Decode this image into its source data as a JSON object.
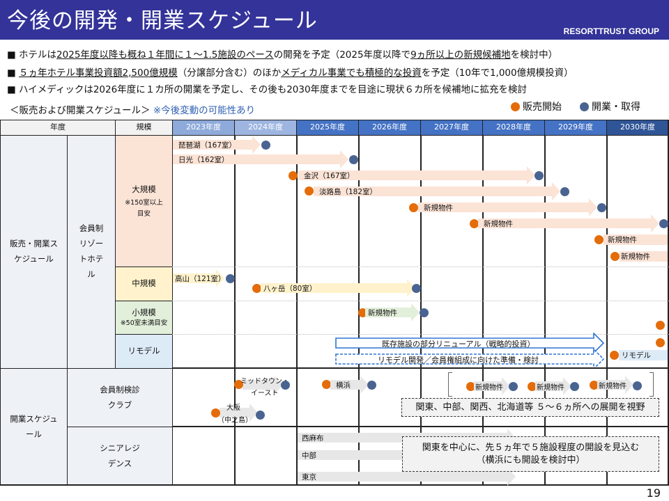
{
  "header": {
    "title": "今後の開発・開業スケジュール",
    "brand": "RESORTTRUST GROUP"
  },
  "bullets": [
    [
      "ホテルは",
      "2025年度以降も概ね１年間に１～1.5施設のペース",
      "の開発を予定（2025年度以降で",
      "9ヵ所以上の新規候補地",
      "を検討中）"
    ],
    [
      "５ヵ年ホテル事業投資額2,500億規模",
      "（分譲部分含む）のほか",
      "メディカル事業でも積極的な投資",
      "を予定（10年で1,000億規模投資）"
    ],
    [
      "ハイメディックは2026年度に１カ所の開業を予定し、その後も2030年度までを目途に現状６カ所を候補地に拡充を検討"
    ]
  ],
  "schedule": {
    "title": "＜販売および開業スケジュール＞",
    "note": "※今後変動の可能性あり"
  },
  "legend": {
    "sale": "販売開始",
    "open": "開業・取得",
    "sale_color": "#e46c0a",
    "open_color": "#4a6491"
  },
  "table": {
    "headers": {
      "year": "年度",
      "scale": "規模"
    },
    "years": [
      "2023年度",
      "2024年度",
      "2025年度",
      "2026年度",
      "2027年度",
      "2028年度",
      "2029年度",
      "2030年度"
    ],
    "sections": {
      "sales_open": "販売・開業スケジュール",
      "member_resort": "会員制リゾートホテル",
      "open_sched": "開業スケジュール",
      "clinic_club": "会員制検診クラブ",
      "senior": "シニアレジデンス"
    },
    "scales": {
      "large": "大規模",
      "large_note": "※150室以上目安",
      "medium": "中規模",
      "small": "小規模",
      "small_note": "※50室未満目安",
      "remodel": "リモデル"
    }
  },
  "hotels": {
    "biwako": "琵琶湖（167室）",
    "nikko": "日光（162室）",
    "kanazawa": "金沢（167室）",
    "awaji": "淡路島（182室）",
    "new1": "新規物件",
    "new2": "新規物件",
    "new3": "新規物件",
    "new4": "新規物件",
    "takayama": "高山（121室）",
    "yatsugatake": "八ヶ岳（80室）",
    "small_new": "新規物件",
    "renewal": "既存施設の部分リニューアル（戦略的投資）",
    "remodel_prep": "リモデル開発／会員権組成に向けた準備・検討",
    "remodel": "リモデル"
  },
  "clinic": {
    "midtown_1": "ミッドタウン・",
    "midtown_2": "イースト",
    "osaka_1": "大阪",
    "osaka_2": "（中之島）",
    "yokohama": "横浜",
    "new1": "新規物件",
    "new2": "新規物件",
    "new3": "新規物件",
    "note": "関東、中部、関西、北海道等 ５～６ヵ所への展開を視野"
  },
  "senior": {
    "items": [
      "西麻布",
      "中部",
      "東京"
    ],
    "note1": "関東を中心に、先５ヵ年で５施設程度の開設を見込む",
    "note2": "（横浜にも開設を検討中）"
  },
  "page_number": "19"
}
